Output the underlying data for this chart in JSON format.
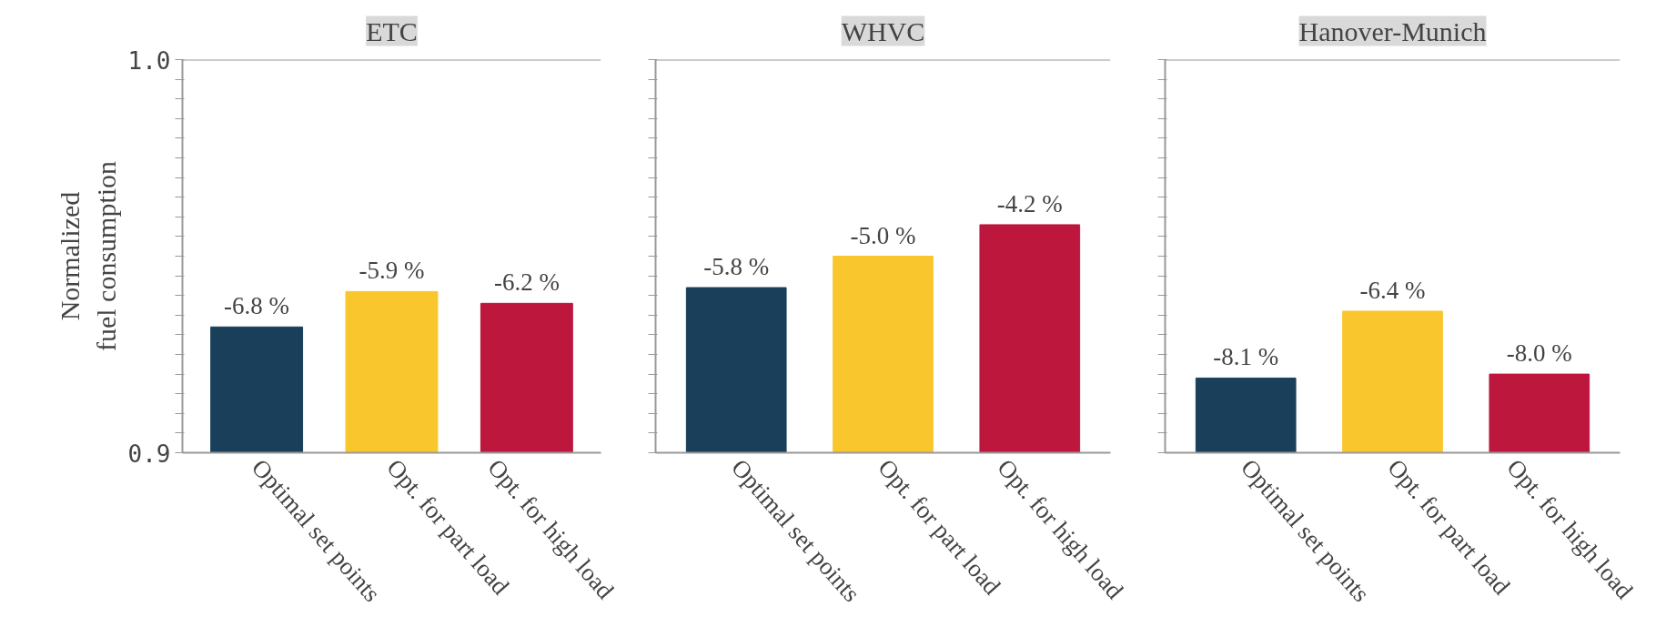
{
  "chart_data": [
    {
      "type": "bar",
      "title": "ETC",
      "ylabel": "Normalized\nfuel consumption",
      "categories": [
        "Optimal set points",
        "Opt. for part load",
        "Opt. for high load"
      ],
      "values": [
        0.932,
        0.941,
        0.938
      ],
      "colors": [
        "#1a3f5a",
        "#f9c62e",
        "#be173d"
      ],
      "annotations": [
        {
          "text": "-6.8 %",
          "x": "Optimal set points",
          "y": 0.932
        },
        {
          "text": "-5.9 %",
          "x": "Opt. for part load",
          "y": 0.941
        },
        {
          "text": "-6.2 %",
          "x": "Opt. for high load",
          "y": 0.938
        }
      ],
      "ylim": [
        0.9,
        1.0
      ],
      "yticks": [
        {
          "value": 0.9,
          "label": "0.9"
        },
        {
          "value": 0.905,
          "label": null
        },
        {
          "value": 0.91,
          "label": null
        },
        {
          "value": 0.915,
          "label": null
        },
        {
          "value": 0.92,
          "label": null
        },
        {
          "value": 0.925,
          "label": null
        },
        {
          "value": 0.93,
          "label": null
        },
        {
          "value": 0.935,
          "label": null
        },
        {
          "value": 0.94,
          "label": null
        },
        {
          "value": 0.945,
          "label": null
        },
        {
          "value": 0.95,
          "label": null
        },
        {
          "value": 0.955,
          "label": null
        },
        {
          "value": 0.96,
          "label": null
        },
        {
          "value": 0.965,
          "label": null
        },
        {
          "value": 0.97,
          "label": null
        },
        {
          "value": 0.975,
          "label": null
        },
        {
          "value": 0.98,
          "label": null
        },
        {
          "value": 0.985,
          "label": null
        },
        {
          "value": 0.99,
          "label": null
        },
        {
          "value": 0.995,
          "label": null
        },
        {
          "value": 1.0,
          "label": "1.0"
        }
      ],
      "grid": false
    },
    {
      "type": "bar",
      "title": "WHVC",
      "categories": [
        "Optimal set points",
        "Opt. for part load",
        "Opt. for high load"
      ],
      "values": [
        0.942,
        0.95,
        0.958
      ],
      "colors": [
        "#1a3f5a",
        "#f9c62e",
        "#be173d"
      ],
      "annotations": [
        {
          "text": "-5.8 %",
          "x": "Optimal set points",
          "y": 0.942
        },
        {
          "text": "-5.0 %",
          "x": "Opt. for part load",
          "y": 0.95
        },
        {
          "text": "-4.2 %",
          "x": "Opt. for high load",
          "y": 0.958
        }
      ],
      "ylim": [
        0.9,
        1.0
      ],
      "yticks": [
        {
          "value": 0.9,
          "label": null
        },
        {
          "value": 0.905,
          "label": null
        },
        {
          "value": 0.91,
          "label": null
        },
        {
          "value": 0.915,
          "label": null
        },
        {
          "value": 0.92,
          "label": null
        },
        {
          "value": 0.925,
          "label": null
        },
        {
          "value": 0.93,
          "label": null
        },
        {
          "value": 0.935,
          "label": null
        },
        {
          "value": 0.94,
          "label": null
        },
        {
          "value": 0.945,
          "label": null
        },
        {
          "value": 0.95,
          "label": null
        },
        {
          "value": 0.955,
          "label": null
        },
        {
          "value": 0.96,
          "label": null
        },
        {
          "value": 0.965,
          "label": null
        },
        {
          "value": 0.97,
          "label": null
        },
        {
          "value": 0.975,
          "label": null
        },
        {
          "value": 0.98,
          "label": null
        },
        {
          "value": 0.985,
          "label": null
        },
        {
          "value": 0.99,
          "label": null
        },
        {
          "value": 0.995,
          "label": null
        },
        {
          "value": 1.0,
          "label": null
        }
      ],
      "tick_labels": "x",
      "grid": false
    },
    {
      "type": "bar",
      "title": "Hanover-Munich",
      "categories": [
        "Optimal set points",
        "Opt. for part load",
        "Opt. for high load"
      ],
      "values": [
        0.919,
        0.936,
        0.92
      ],
      "colors": [
        "#1a3f5a",
        "#f9c62e",
        "#be173d"
      ],
      "annotations": [
        {
          "text": "-8.1 %",
          "x": "Optimal set points",
          "y": 0.919
        },
        {
          "text": "-6.4 %",
          "x": "Opt. for part load",
          "y": 0.936
        },
        {
          "text": "-8.0 %",
          "x": "Opt. for high load",
          "y": 0.92
        }
      ],
      "ylim": [
        0.9,
        1.0
      ],
      "yticks": [
        {
          "value": 0.9,
          "label": null
        },
        {
          "value": 0.905,
          "label": null
        },
        {
          "value": 0.91,
          "label": null
        },
        {
          "value": 0.915,
          "label": null
        },
        {
          "value": 0.92,
          "label": null
        },
        {
          "value": 0.925,
          "label": null
        },
        {
          "value": 0.93,
          "label": null
        },
        {
          "value": 0.935,
          "label": null
        },
        {
          "value": 0.94,
          "label": null
        },
        {
          "value": 0.945,
          "label": null
        },
        {
          "value": 0.95,
          "label": null
        },
        {
          "value": 0.955,
          "label": null
        },
        {
          "value": 0.96,
          "label": null
        },
        {
          "value": 0.965,
          "label": null
        },
        {
          "value": 0.97,
          "label": null
        },
        {
          "value": 0.975,
          "label": null
        },
        {
          "value": 0.98,
          "label": null
        },
        {
          "value": 0.985,
          "label": null
        },
        {
          "value": 0.99,
          "label": null
        },
        {
          "value": 0.995,
          "label": null
        },
        {
          "value": 1.0,
          "label": null
        }
      ],
      "tick_labels": "x",
      "grid": false
    }
  ]
}
